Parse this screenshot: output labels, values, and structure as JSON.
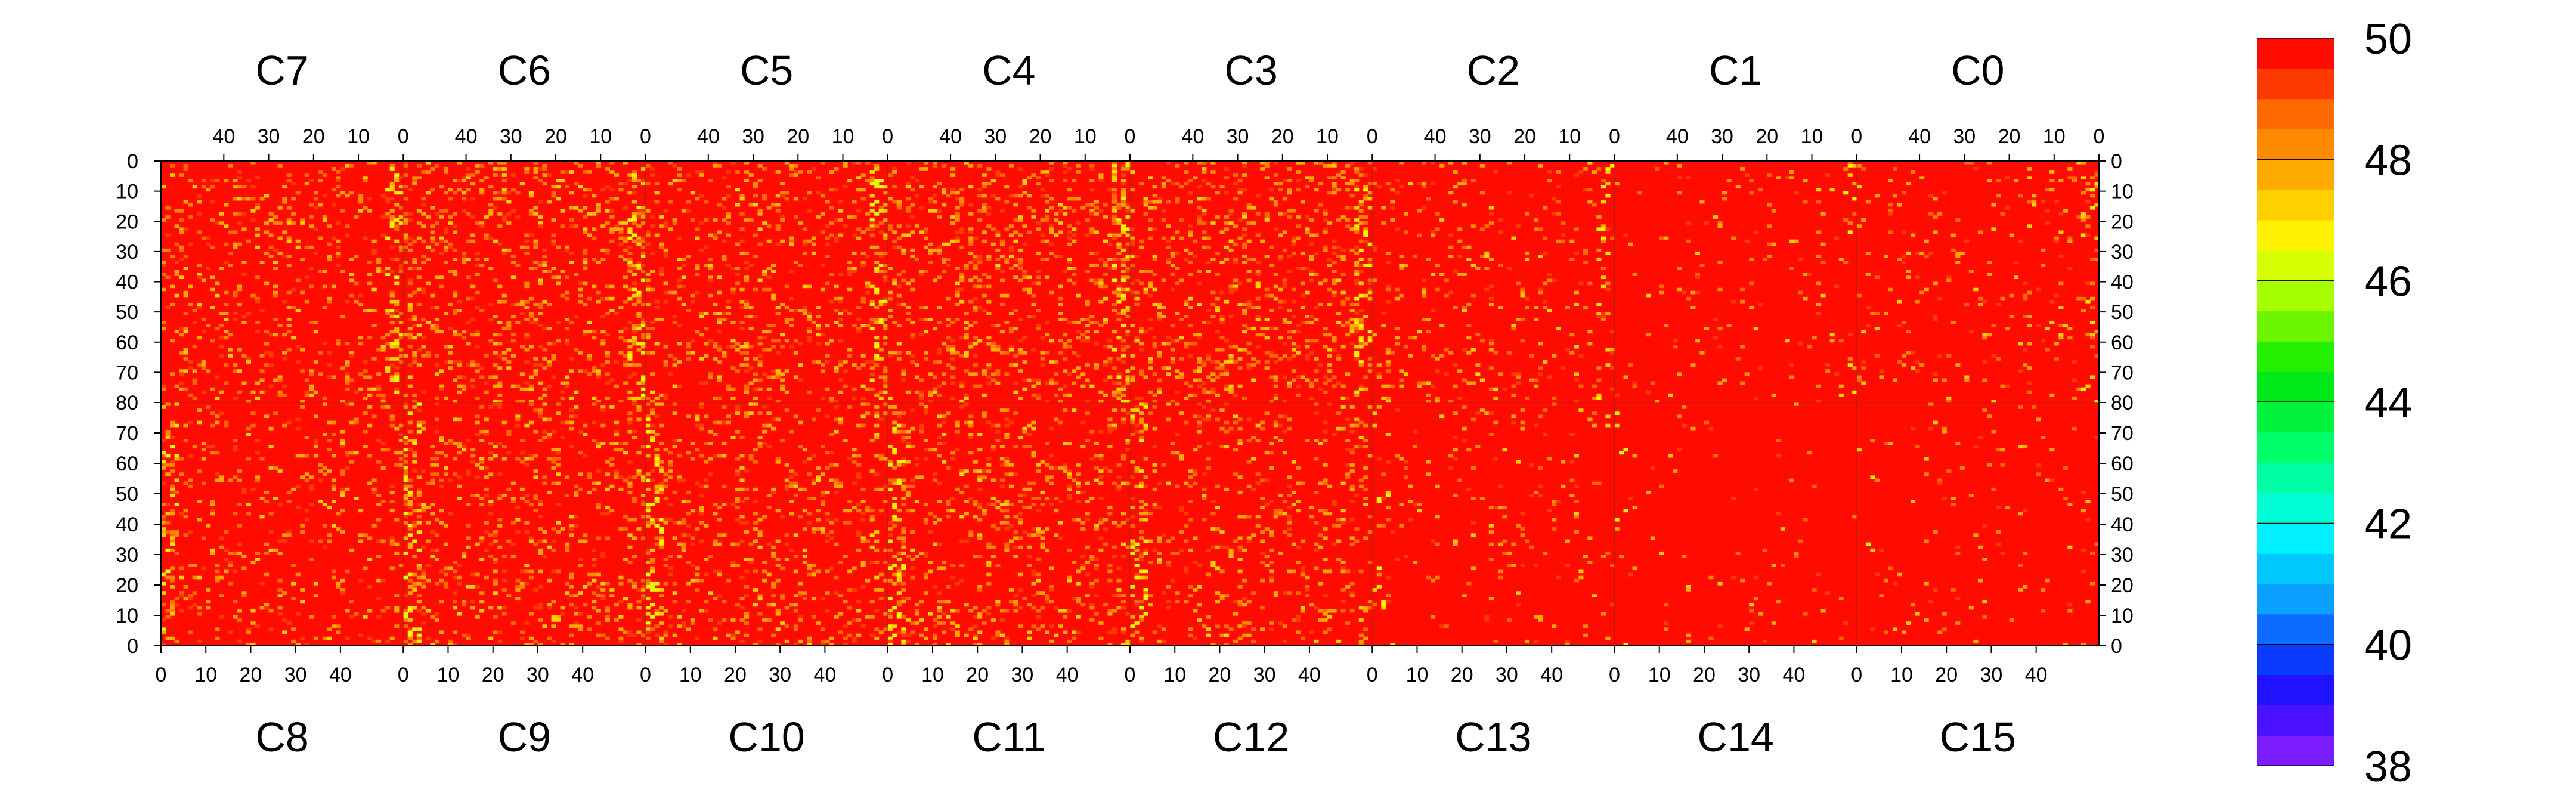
{
  "chart_data": {
    "type": "heatmap",
    "title": "",
    "zlim": [
      38,
      50
    ],
    "colorbar": {
      "tick_labels": [
        "50",
        "48",
        "46",
        "44",
        "42",
        "40",
        "38"
      ],
      "tick_values": [
        50,
        48,
        46,
        44,
        42,
        40,
        38
      ],
      "bands": [
        "#7a1cff",
        "#4a12ff",
        "#1f12ff",
        "#0a3cff",
        "#0b6cff",
        "#0aa0ff",
        "#00c8ff",
        "#00f0ff",
        "#00ffd4",
        "#00ffa2",
        "#00ff6a",
        "#00f23a",
        "#00e81a",
        "#22f000",
        "#6cf500",
        "#a6ff00",
        "#d8ff00",
        "#fff200",
        "#ffd000",
        "#ffaa00",
        "#ff8a00",
        "#ff6a00",
        "#ff3a00",
        "#ff0c00"
      ]
    },
    "top_chips": [
      {
        "label": "C7",
        "col_ticks": [
          "40",
          "30",
          "20",
          "10",
          "0"
        ]
      },
      {
        "label": "C6",
        "col_ticks": [
          "40",
          "30",
          "20",
          "10",
          "0"
        ]
      },
      {
        "label": "C5",
        "col_ticks": [
          "40",
          "30",
          "20",
          "10",
          "0"
        ]
      },
      {
        "label": "C4",
        "col_ticks": [
          "40",
          "30",
          "20",
          "10",
          "0"
        ]
      },
      {
        "label": "C3",
        "col_ticks": [
          "40",
          "30",
          "20",
          "10",
          "0"
        ]
      },
      {
        "label": "C2",
        "col_ticks": [
          "40",
          "30",
          "20",
          "10",
          "0"
        ]
      },
      {
        "label": "C1",
        "col_ticks": [
          "40",
          "30",
          "20",
          "10",
          "0"
        ]
      },
      {
        "label": "C0",
        "col_ticks": [
          "40",
          "30",
          "20",
          "10",
          "0"
        ]
      }
    ],
    "bottom_chips": [
      {
        "label": "C8",
        "col_ticks": [
          "0",
          "10",
          "20",
          "30",
          "40"
        ]
      },
      {
        "label": "C9",
        "col_ticks": [
          "0",
          "10",
          "20",
          "30",
          "40"
        ]
      },
      {
        "label": "C10",
        "col_ticks": [
          "0",
          "10",
          "20",
          "30",
          "40"
        ]
      },
      {
        "label": "C11",
        "col_ticks": [
          "0",
          "10",
          "20",
          "30",
          "40"
        ]
      },
      {
        "label": "C12",
        "col_ticks": [
          "0",
          "10",
          "20",
          "30",
          "40"
        ]
      },
      {
        "label": "C13",
        "col_ticks": [
          "0",
          "10",
          "20",
          "30",
          "40"
        ]
      },
      {
        "label": "C14",
        "col_ticks": [
          "0",
          "10",
          "20",
          "30",
          "40"
        ]
      },
      {
        "label": "C15",
        "col_ticks": [
          "0",
          "10",
          "20",
          "30",
          "40"
        ]
      }
    ],
    "row_tick_labels": [
      "0",
      "10",
      "20",
      "30",
      "40",
      "50",
      "60",
      "70",
      "80",
      "70",
      "60",
      "50",
      "40",
      "30",
      "20",
      "10",
      "0"
    ],
    "grid": {
      "chips_per_half": 8,
      "columns_per_chip": 54,
      "rows_per_half": 80,
      "column_tick_step": 10,
      "row_tick_step": 10
    },
    "dominant_value": 50,
    "noisy_chip_columns": [
      {
        "half": "top",
        "chip": "C7",
        "noise": 0.25
      },
      {
        "half": "top",
        "chip": "C6",
        "noise": 0.35
      },
      {
        "half": "top",
        "chip": "C5",
        "noise": 0.3
      },
      {
        "half": "top",
        "chip": "C4",
        "noise": 0.35
      },
      {
        "half": "top",
        "chip": "C3",
        "noise": 0.35
      },
      {
        "half": "top",
        "chip": "C2",
        "noise": 0.15
      },
      {
        "half": "top",
        "chip": "C1",
        "noise": 0.06
      },
      {
        "half": "top",
        "chip": "C0",
        "noise": 0.12
      },
      {
        "half": "bottom",
        "chip": "C8",
        "noise": 0.2
      },
      {
        "half": "bottom",
        "chip": "C9",
        "noise": 0.3
      },
      {
        "half": "bottom",
        "chip": "C10",
        "noise": 0.3
      },
      {
        "half": "bottom",
        "chip": "C11",
        "noise": 0.3
      },
      {
        "half": "bottom",
        "chip": "C12",
        "noise": 0.25
      },
      {
        "half": "bottom",
        "chip": "C13",
        "noise": 0.08
      },
      {
        "half": "bottom",
        "chip": "C14",
        "noise": 0.04
      },
      {
        "half": "bottom",
        "chip": "C15",
        "noise": 0.05
      }
    ]
  }
}
